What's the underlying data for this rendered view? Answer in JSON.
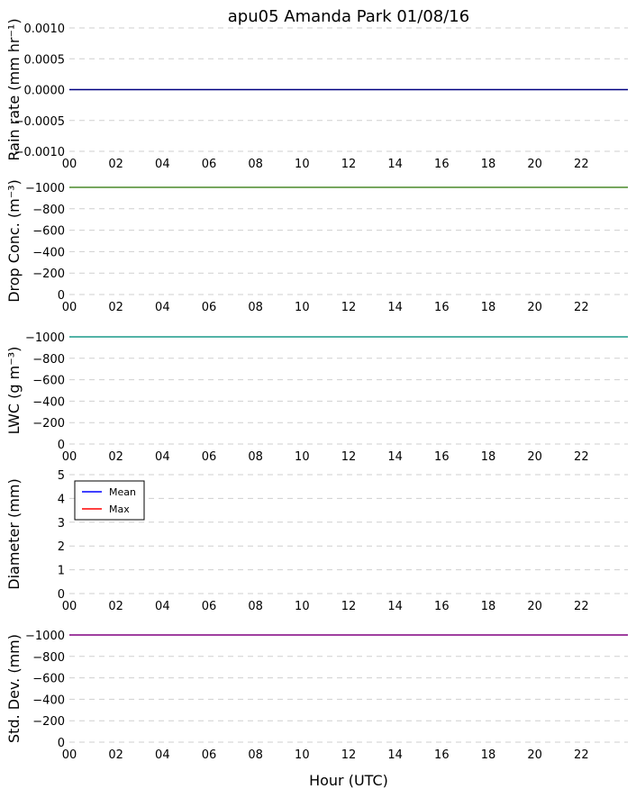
{
  "title": "apu05 Amanda Park 01/08/16",
  "xlabel": "Hour (UTC)",
  "chart_data": [
    {
      "type": "line",
      "ylabel": "Rain rate (mm hr⁻¹)",
      "xlim": [
        0,
        24
      ],
      "xticks": [
        "00",
        "02",
        "04",
        "06",
        "08",
        "10",
        "12",
        "14",
        "16",
        "18",
        "20",
        "22"
      ],
      "ylim": [
        -0.001,
        0.001
      ],
      "yticks": [
        0.001,
        0.0005,
        0.0,
        -0.0005,
        -0.001
      ],
      "ytick_labels": [
        "0.0010",
        "0.0005",
        "0.0000",
        "−0.0005",
        "−0.0010"
      ],
      "grid": true,
      "series": [
        {
          "color": "#000080",
          "x": [
            0,
            24
          ],
          "y": [
            0,
            0
          ]
        }
      ]
    },
    {
      "type": "line",
      "ylabel": "Drop Conc. (m⁻³)",
      "xlim": [
        0,
        24
      ],
      "xticks": [
        "00",
        "02",
        "04",
        "06",
        "08",
        "10",
        "12",
        "14",
        "16",
        "18",
        "20",
        "22"
      ],
      "ylim": [
        0,
        -1000
      ],
      "yticks": [
        -1000,
        -800,
        -600,
        -400,
        -200,
        0
      ],
      "ytick_labels": [
        "−1000",
        "−800",
        "−600",
        "−400",
        "−200",
        "0"
      ],
      "grid": true,
      "series": [
        {
          "color": "#4a8a2a",
          "x": [
            0,
            24
          ],
          "y": [
            -1000,
            -1000
          ]
        }
      ]
    },
    {
      "type": "line",
      "ylabel": "LWC (g m⁻³)",
      "xlim": [
        0,
        24
      ],
      "xticks": [
        "00",
        "02",
        "04",
        "06",
        "08",
        "10",
        "12",
        "14",
        "16",
        "18",
        "20",
        "22"
      ],
      "ylim": [
        0,
        -1000
      ],
      "yticks": [
        -1000,
        -800,
        -600,
        -400,
        -200,
        0
      ],
      "ytick_labels": [
        "−1000",
        "−800",
        "−600",
        "−400",
        "−200",
        "0"
      ],
      "grid": true,
      "series": [
        {
          "color": "#1a9a8a",
          "x": [
            0,
            24
          ],
          "y": [
            -1000,
            -1000
          ]
        }
      ]
    },
    {
      "type": "line",
      "ylabel": "Diameter (mm)",
      "xlim": [
        0,
        24
      ],
      "xticks": [
        "00",
        "02",
        "04",
        "06",
        "08",
        "10",
        "12",
        "14",
        "16",
        "18",
        "20",
        "22"
      ],
      "ylim": [
        0,
        5
      ],
      "yticks": [
        5,
        4,
        3,
        2,
        1,
        0
      ],
      "ytick_labels": [
        "5",
        "4",
        "3",
        "2",
        "1",
        "0"
      ],
      "grid": true,
      "legend": "top-left",
      "series": [
        {
          "name": "Mean",
          "color": "#0000ff",
          "x": [],
          "y": []
        },
        {
          "name": "Max",
          "color": "#ff0000",
          "x": [],
          "y": []
        }
      ]
    },
    {
      "type": "line",
      "ylabel": "Std. Dev. (mm)",
      "xlim": [
        0,
        24
      ],
      "xticks": [
        "00",
        "02",
        "04",
        "06",
        "08",
        "10",
        "12",
        "14",
        "16",
        "18",
        "20",
        "22"
      ],
      "ylim": [
        0,
        -1000
      ],
      "yticks": [
        -1000,
        -800,
        -600,
        -400,
        -200,
        0
      ],
      "ytick_labels": [
        "−1000",
        "−800",
        "−600",
        "−400",
        "−200",
        "0"
      ],
      "grid": true,
      "series": [
        {
          "color": "#800080",
          "x": [
            0,
            24
          ],
          "y": [
            -1000,
            -1000
          ]
        }
      ]
    }
  ]
}
